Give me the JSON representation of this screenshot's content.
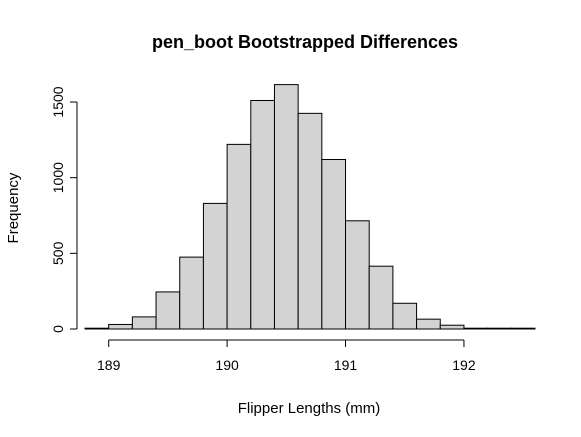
{
  "chart_data": {
    "type": "bar",
    "title": "pen_boot Bootstrapped Differences",
    "xlabel": "Flipper Lengths (mm)",
    "ylabel": "Frequency",
    "bins": [
      {
        "start": 188.8,
        "end": 189.0,
        "count": 5
      },
      {
        "start": 189.0,
        "end": 189.2,
        "count": 30
      },
      {
        "start": 189.2,
        "end": 189.4,
        "count": 80
      },
      {
        "start": 189.4,
        "end": 189.6,
        "count": 245
      },
      {
        "start": 189.6,
        "end": 189.8,
        "count": 475
      },
      {
        "start": 189.8,
        "end": 190.0,
        "count": 830
      },
      {
        "start": 190.0,
        "end": 190.2,
        "count": 1220
      },
      {
        "start": 190.2,
        "end": 190.4,
        "count": 1510
      },
      {
        "start": 190.4,
        "end": 190.6,
        "count": 1615
      },
      {
        "start": 190.6,
        "end": 190.8,
        "count": 1425
      },
      {
        "start": 190.8,
        "end": 191.0,
        "count": 1120
      },
      {
        "start": 191.0,
        "end": 191.2,
        "count": 715
      },
      {
        "start": 191.2,
        "end": 191.4,
        "count": 415
      },
      {
        "start": 191.4,
        "end": 191.6,
        "count": 170
      },
      {
        "start": 191.6,
        "end": 191.8,
        "count": 65
      },
      {
        "start": 191.8,
        "end": 192.0,
        "count": 25
      },
      {
        "start": 192.0,
        "end": 192.2,
        "count": 5
      },
      {
        "start": 192.2,
        "end": 192.4,
        "count": 1
      },
      {
        "start": 192.4,
        "end": 192.6,
        "count": 1
      }
    ],
    "x_ticks": [
      189,
      190,
      191,
      192
    ],
    "x_tick_labels": [
      "189",
      "190",
      "191",
      "192"
    ],
    "y_ticks": [
      0,
      500,
      1000,
      1500
    ],
    "y_tick_labels": [
      "0",
      "500",
      "1000",
      "1500"
    ],
    "xlim": [
      188.8,
      192.6
    ],
    "ylim": [
      0,
      1650
    ],
    "grid": false,
    "colors": {
      "bar_fill": "#d3d3d3",
      "bar_stroke": "#000000"
    }
  }
}
